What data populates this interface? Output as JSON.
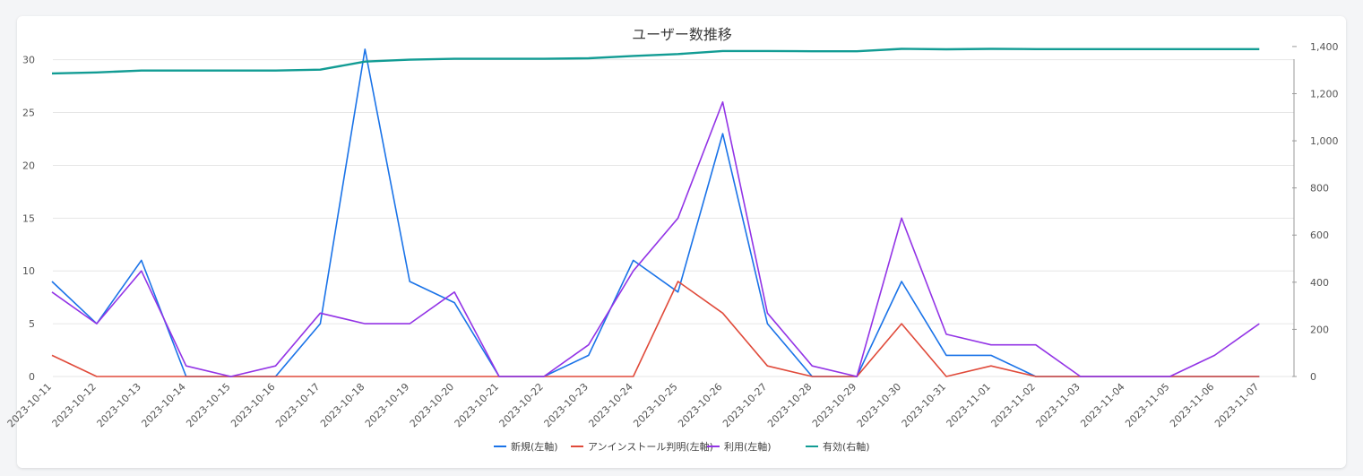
{
  "chart_data": {
    "type": "line",
    "title": "ユーザー数推移",
    "x": [
      "2023-10-11",
      "2023-10-12",
      "2023-10-13",
      "2023-10-14",
      "2023-10-15",
      "2023-10-16",
      "2023-10-17",
      "2023-10-18",
      "2023-10-19",
      "2023-10-20",
      "2023-10-21",
      "2023-10-22",
      "2023-10-23",
      "2023-10-24",
      "2023-10-25",
      "2023-10-26",
      "2023-10-27",
      "2023-10-28",
      "2023-10-29",
      "2023-10-30",
      "2023-10-31",
      "2023-11-01",
      "2023-11-02",
      "2023-11-03",
      "2023-11-04",
      "2023-11-05",
      "2023-11-06",
      "2023-11-07"
    ],
    "y_left": {
      "ticks": [
        0,
        5,
        10,
        15,
        20,
        25,
        30
      ],
      "ylim": [
        0,
        31.5
      ]
    },
    "y_right": {
      "ticks": [
        "0",
        "200",
        "400",
        "600",
        "800",
        "1,000",
        "1,200",
        "1,400"
      ],
      "tick_values": [
        0,
        200,
        400,
        600,
        800,
        1000,
        1200,
        1400
      ],
      "ylim": [
        0,
        1411
      ]
    },
    "grid": true,
    "legend_position": "bottom-center",
    "series": [
      {
        "name": "新規(左軸)",
        "axis": "left",
        "color": "#1a73e8",
        "values": [
          9,
          5,
          11,
          0,
          0,
          0,
          5,
          31,
          9,
          7,
          0,
          0,
          2,
          11,
          8,
          23,
          5,
          0,
          0,
          9,
          2,
          2,
          0,
          0,
          0,
          0,
          0,
          0
        ]
      },
      {
        "name": "アンインストール判明(左軸)",
        "axis": "left",
        "color": "#e04a3a",
        "values": [
          2,
          0,
          0,
          0,
          0,
          0,
          0,
          0,
          0,
          0,
          0,
          0,
          0,
          0,
          9,
          6,
          1,
          0,
          0,
          5,
          0,
          1,
          0,
          0,
          0,
          0,
          0,
          0
        ]
      },
      {
        "name": "利用(左軸)",
        "axis": "left",
        "color": "#9334e6",
        "values": [
          8,
          5,
          10,
          1,
          0,
          1,
          6,
          5,
          5,
          8,
          0,
          0,
          3,
          10,
          15,
          26,
          6,
          1,
          0,
          15,
          4,
          3,
          3,
          0,
          0,
          0,
          2,
          5
        ]
      },
      {
        "name": "有効(右軸)",
        "axis": "right",
        "color": "#129c94",
        "values": [
          1286,
          1290,
          1298,
          1298,
          1298,
          1298,
          1302,
          1336,
          1344,
          1348,
          1348,
          1348,
          1350,
          1360,
          1368,
          1381,
          1381,
          1380,
          1380,
          1390,
          1388,
          1390,
          1389,
          1389,
          1389,
          1389,
          1389,
          1389
        ]
      }
    ]
  }
}
